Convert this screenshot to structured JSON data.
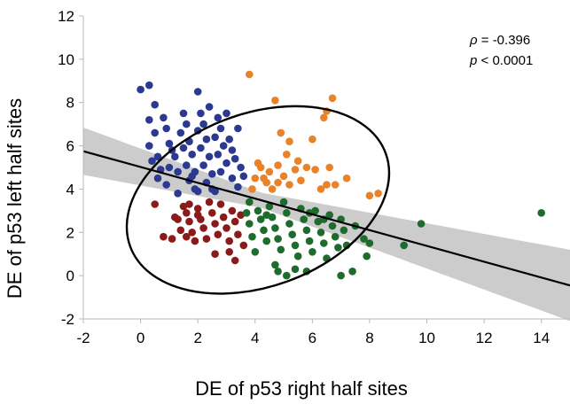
{
  "chart_data": {
    "type": "scatter",
    "title": "",
    "xlabel": "DE of p53 right half sites",
    "ylabel": "DE of p53 left half sites",
    "xlim": [
      -2,
      15
    ],
    "ylim": [
      -2,
      12
    ],
    "xticks": [
      "-2",
      "0",
      "2",
      "4",
      "6",
      "8",
      "10",
      "12",
      "14"
    ],
    "xtick_values": [
      -2,
      0,
      2,
      4,
      6,
      8,
      10,
      12,
      14
    ],
    "yticks": [
      "-2",
      "0",
      "2",
      "4",
      "6",
      "8",
      "10",
      "12"
    ],
    "ytick_values": [
      -2,
      0,
      2,
      4,
      6,
      8,
      10,
      12
    ],
    "grid": false,
    "annotation": {
      "rho_symbol": "ρ",
      "rho_text": " = -0.396",
      "p_symbol": "p",
      "p_text": " < 0.0001"
    },
    "regression": {
      "x": [
        -2,
        15
      ],
      "y": [
        5.75,
        -0.45
      ]
    },
    "confidence_band_color": "#cccccc",
    "ellipse": {
      "cx": 4.1,
      "cy": 3.5,
      "rx": 4.75,
      "ry": 4.0,
      "rotation_deg": -20
    },
    "series": [
      {
        "color": "#2b3990",
        "points": [
          [
            0,
            8.6
          ],
          [
            0.3,
            8.8
          ],
          [
            0.5,
            7.9
          ],
          [
            0.3,
            7.2
          ],
          [
            0.8,
            7.3
          ],
          [
            0.5,
            6.6
          ],
          [
            0.3,
            6.0
          ],
          [
            0.6,
            5.5
          ],
          [
            0.4,
            5.3
          ],
          [
            0.7,
            4.9
          ],
          [
            0.6,
            4.5
          ],
          [
            0.9,
            4.2
          ],
          [
            1.0,
            6.1
          ],
          [
            1.1,
            5.8
          ],
          [
            1.2,
            5.5
          ],
          [
            1.0,
            5.0
          ],
          [
            1.3,
            4.8
          ],
          [
            1.5,
            7.5
          ],
          [
            1.6,
            7.0
          ],
          [
            1.4,
            6.6
          ],
          [
            1.7,
            6.2
          ],
          [
            1.5,
            5.9
          ],
          [
            1.8,
            5.6
          ],
          [
            1.6,
            5.1
          ],
          [
            1.9,
            4.8
          ],
          [
            1.7,
            4.4
          ],
          [
            1.9,
            4.0
          ],
          [
            2.0,
            8.5
          ],
          [
            2.1,
            7.5
          ],
          [
            2.2,
            7.0
          ],
          [
            2.0,
            6.7
          ],
          [
            2.3,
            6.3
          ],
          [
            2.1,
            5.9
          ],
          [
            2.4,
            5.5
          ],
          [
            2.2,
            5.1
          ],
          [
            2.5,
            4.7
          ],
          [
            2.3,
            4.3
          ],
          [
            2.6,
            3.9
          ],
          [
            2.7,
            7.3
          ],
          [
            2.8,
            6.8
          ],
          [
            2.6,
            6.4
          ],
          [
            2.9,
            6.0
          ],
          [
            2.7,
            5.6
          ],
          [
            3.0,
            5.2
          ],
          [
            2.8,
            4.8
          ],
          [
            3.1,
            6.3
          ],
          [
            3.2,
            5.8
          ],
          [
            3.3,
            5.4
          ],
          [
            3.4,
            6.8
          ],
          [
            3.5,
            5.0
          ],
          [
            3.2,
            4.5
          ],
          [
            3.4,
            4.1
          ],
          [
            3.6,
            4.6
          ],
          [
            1.3,
            3.8
          ],
          [
            2.0,
            3.9
          ],
          [
            2.5,
            4.0
          ],
          [
            1.8,
            4.6
          ],
          [
            0.9,
            6.8
          ],
          [
            2.4,
            7.8
          ],
          [
            3.0,
            7.5
          ]
        ]
      },
      {
        "color": "#e8832a",
        "points": [
          [
            3.8,
            9.3
          ],
          [
            4.7,
            8.1
          ],
          [
            6.7,
            8.2
          ],
          [
            6.4,
            7.3
          ],
          [
            6.5,
            7.6
          ],
          [
            4.9,
            6.6
          ],
          [
            5.2,
            6.2
          ],
          [
            6.0,
            6.3
          ],
          [
            5.1,
            5.6
          ],
          [
            4.2,
            5.0
          ],
          [
            4.5,
            4.8
          ],
          [
            4.8,
            5.1
          ],
          [
            5.4,
            4.9
          ],
          [
            5.8,
            5.0
          ],
          [
            6.1,
            4.9
          ],
          [
            6.6,
            5.0
          ],
          [
            4.0,
            4.5
          ],
          [
            4.4,
            4.3
          ],
          [
            4.8,
            4.3
          ],
          [
            5.2,
            4.2
          ],
          [
            5.6,
            4.4
          ],
          [
            6.3,
            4.0
          ],
          [
            6.8,
            4.2
          ],
          [
            7.2,
            4.5
          ],
          [
            6.5,
            4.2
          ],
          [
            8.0,
            3.7
          ],
          [
            8.3,
            3.8
          ],
          [
            3.9,
            4.0
          ],
          [
            4.6,
            4.0
          ],
          [
            5.0,
            4.6
          ],
          [
            4.1,
            5.2
          ],
          [
            4.3,
            4.5
          ],
          [
            5.5,
            5.3
          ]
        ]
      },
      {
        "color": "#8b1a1a",
        "points": [
          [
            0.5,
            3.3
          ],
          [
            0.8,
            1.8
          ],
          [
            1.1,
            1.7
          ],
          [
            1.2,
            2.7
          ],
          [
            1.4,
            2.1
          ],
          [
            1.5,
            3.2
          ],
          [
            1.6,
            2.9
          ],
          [
            1.7,
            2.5
          ],
          [
            1.8,
            2.0
          ],
          [
            1.9,
            1.6
          ],
          [
            1.6,
            1.8
          ],
          [
            2.0,
            3.1
          ],
          [
            2.1,
            2.6
          ],
          [
            2.2,
            2.2
          ],
          [
            2.3,
            1.7
          ],
          [
            2.4,
            3.4
          ],
          [
            2.5,
            2.9
          ],
          [
            2.6,
            2.4
          ],
          [
            2.7,
            1.9
          ],
          [
            2.8,
            3.3
          ],
          [
            2.9,
            2.7
          ],
          [
            3.0,
            2.2
          ],
          [
            3.1,
            1.6
          ],
          [
            3.2,
            3.0
          ],
          [
            3.3,
            2.5
          ],
          [
            3.4,
            1.9
          ],
          [
            3.1,
            1.1
          ],
          [
            3.3,
            0.7
          ],
          [
            2.6,
            1.0
          ],
          [
            1.3,
            2.6
          ],
          [
            3.5,
            2.8
          ],
          [
            3.6,
            1.4
          ],
          [
            2.0,
            2.8
          ],
          [
            1.7,
            3.3
          ]
        ]
      },
      {
        "color": "#1e6b2e",
        "points": [
          [
            3.8,
            3.4
          ],
          [
            3.7,
            2.9
          ],
          [
            3.8,
            2.4
          ],
          [
            3.9,
            1.8
          ],
          [
            4.0,
            1.1
          ],
          [
            4.1,
            3.0
          ],
          [
            4.2,
            2.6
          ],
          [
            4.3,
            2.1
          ],
          [
            4.4,
            1.6
          ],
          [
            4.5,
            3.2
          ],
          [
            4.6,
            2.7
          ],
          [
            4.7,
            2.2
          ],
          [
            4.8,
            1.7
          ],
          [
            4.9,
            1.2
          ],
          [
            4.7,
            0.5
          ],
          [
            4.8,
            0.2
          ],
          [
            5.0,
            3.4
          ],
          [
            5.1,
            2.9
          ],
          [
            5.2,
            2.4
          ],
          [
            5.3,
            1.9
          ],
          [
            5.4,
            1.4
          ],
          [
            5.5,
            0.9
          ],
          [
            5.4,
            0.3
          ],
          [
            5.6,
            3.1
          ],
          [
            5.7,
            2.6
          ],
          [
            5.8,
            2.1
          ],
          [
            5.9,
            1.6
          ],
          [
            6.0,
            1.1
          ],
          [
            6.1,
            3.0
          ],
          [
            6.2,
            2.5
          ],
          [
            6.3,
            2.0
          ],
          [
            6.4,
            1.5
          ],
          [
            6.5,
            0.8
          ],
          [
            6.6,
            2.8
          ],
          [
            6.7,
            2.3
          ],
          [
            6.8,
            1.8
          ],
          [
            6.9,
            1.3
          ],
          [
            7.0,
            2.6
          ],
          [
            7.1,
            2.1
          ],
          [
            7.2,
            1.4
          ],
          [
            7.5,
            2.3
          ],
          [
            7.8,
            1.7
          ],
          [
            8.0,
            1.5
          ],
          [
            7.9,
            0.9
          ],
          [
            5.1,
            0.0
          ],
          [
            5.8,
            0.2
          ],
          [
            7.0,
            0.0
          ],
          [
            7.4,
            0.2
          ],
          [
            9.2,
            1.4
          ],
          [
            9.8,
            2.4
          ],
          [
            14.0,
            2.9
          ],
          [
            4.4,
            2.8
          ],
          [
            5.9,
            2.9
          ],
          [
            6.4,
            2.6
          ]
        ]
      }
    ]
  }
}
